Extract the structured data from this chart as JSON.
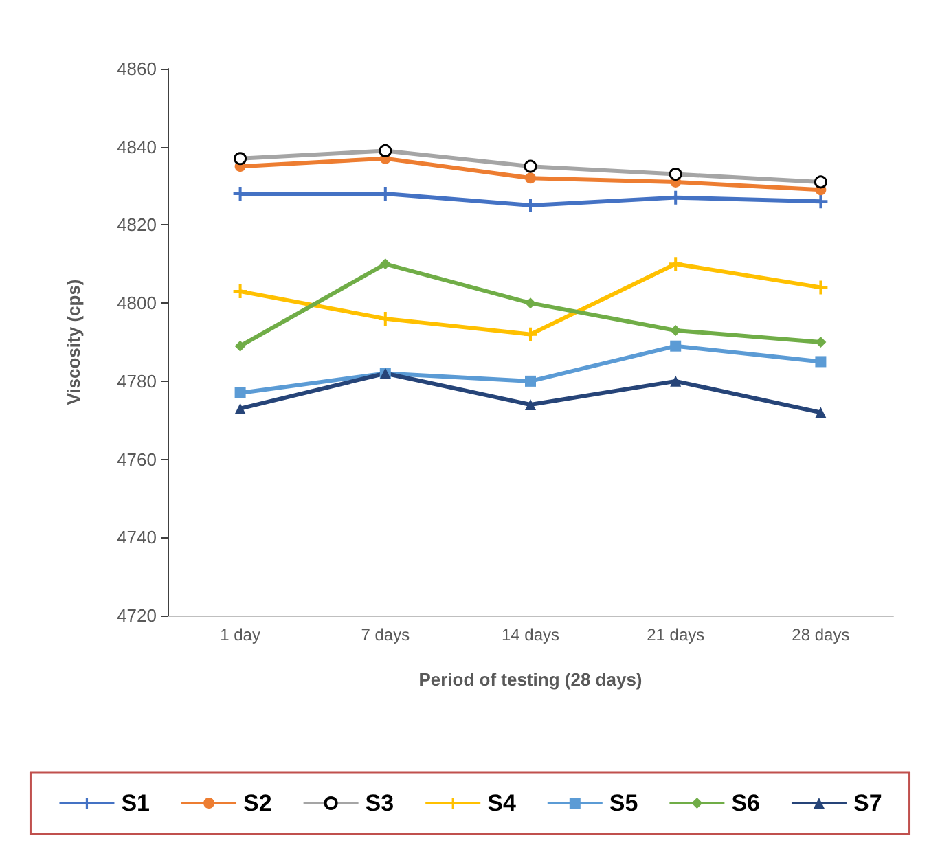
{
  "chart_data": {
    "type": "line",
    "xlabel": "Period of testing (28 days)",
    "ylabel": "Viscosity (cps)",
    "categories": [
      "1 day",
      "7 days",
      "14 days",
      "21 days",
      "28 days"
    ],
    "ylim": [
      4720,
      4860
    ],
    "yticks": [
      4720,
      4740,
      4760,
      4780,
      4800,
      4820,
      4840,
      4860
    ],
    "grid": false,
    "legend": "bottom",
    "series": [
      {
        "name": "S1",
        "color": "#4472c4",
        "marker": "cross",
        "values": [
          4828,
          4828,
          4825,
          4827,
          4826
        ]
      },
      {
        "name": "S2",
        "color": "#ed7d31",
        "marker": "circle",
        "values": [
          4835,
          4837,
          4832,
          4831,
          4829
        ]
      },
      {
        "name": "S3",
        "color": "#a5a5a5",
        "marker": "circle",
        "values": [
          4837,
          4839,
          4835,
          4833,
          4831
        ]
      },
      {
        "name": "S4",
        "color": "#ffc000",
        "marker": "cross",
        "values": [
          4803,
          4796,
          4792,
          4810,
          4804
        ]
      },
      {
        "name": "S5",
        "color": "#5b9bd5",
        "marker": "square",
        "values": [
          4777,
          4782,
          4780,
          4789,
          4785
        ]
      },
      {
        "name": "S6",
        "color": "#70ad47",
        "marker": "diamond",
        "values": [
          4789,
          4810,
          4800,
          4793,
          4790
        ]
      },
      {
        "name": "S7",
        "color": "#264478",
        "marker": "triangle",
        "values": [
          4773,
          4782,
          4774,
          4780,
          4772
        ]
      }
    ]
  }
}
